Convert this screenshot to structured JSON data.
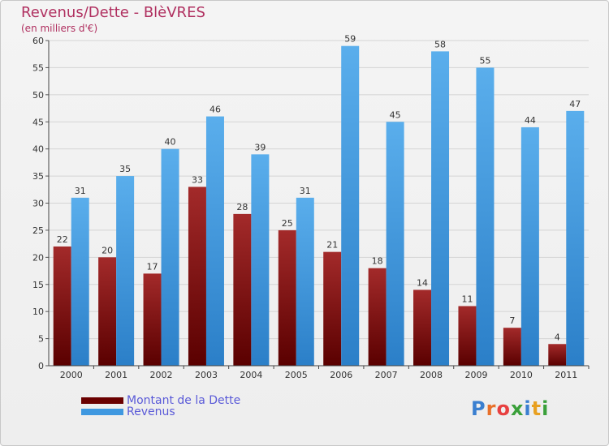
{
  "title": "Revenus/Dette - BlèVRES",
  "subtitle": "(en milliers d'€)",
  "logo_text": "Proxiti",
  "chart_data": {
    "type": "bar",
    "title": "Revenus/Dette - BlèVRES",
    "subtitle": "(en milliers d'€)",
    "xlabel": "",
    "ylabel": "",
    "ylim": [
      0,
      60
    ],
    "yticks": [
      0,
      5,
      10,
      15,
      20,
      25,
      30,
      35,
      40,
      45,
      50,
      55,
      60
    ],
    "grid": true,
    "legend_position": "bottom-left",
    "categories": [
      "2000",
      "2001",
      "2002",
      "2003",
      "2004",
      "2005",
      "2006",
      "2007",
      "2008",
      "2009",
      "2010",
      "2011"
    ],
    "series": [
      {
        "name": "Montant de la Dette",
        "color": "#7a0a0a",
        "values": [
          22,
          20,
          17,
          33,
          28,
          25,
          21,
          18,
          14,
          11,
          7,
          4
        ]
      },
      {
        "name": "Revenus",
        "color": "#4aa3e8",
        "values": [
          31,
          35,
          40,
          46,
          39,
          31,
          59,
          45,
          58,
          55,
          44,
          47
        ]
      }
    ]
  }
}
